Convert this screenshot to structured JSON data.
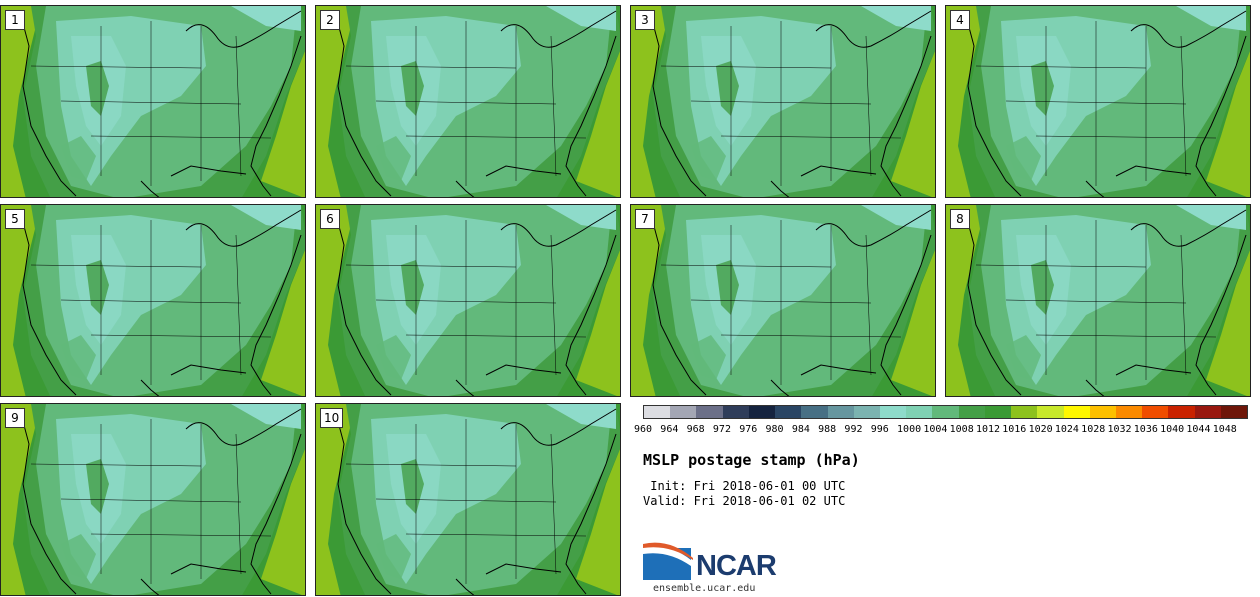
{
  "panels": [
    {
      "label": "1"
    },
    {
      "label": "2"
    },
    {
      "label": "3"
    },
    {
      "label": "4"
    },
    {
      "label": "5"
    },
    {
      "label": "6"
    },
    {
      "label": "7"
    },
    {
      "label": "8"
    },
    {
      "label": "9"
    },
    {
      "label": "10"
    }
  ],
  "colorbar": {
    "colors": [
      "#dcdde2",
      "#a3a6b4",
      "#6b6f88",
      "#2f3d5a",
      "#15233f",
      "#2a4564",
      "#476f84",
      "#66969f",
      "#7bb3b0",
      "#8edbca",
      "#7fd1b3",
      "#62b97b",
      "#449f47",
      "#3b9a35",
      "#8dc21d",
      "#c8e82b",
      "#fff700",
      "#fdc000",
      "#fb8a00",
      "#f04d00",
      "#c92200",
      "#99180f",
      "#6e1609"
    ],
    "ticks": [
      "960",
      "964",
      "968",
      "972",
      "976",
      "980",
      "984",
      "988",
      "992",
      "996",
      "1000",
      "1004",
      "1008",
      "1012",
      "1016",
      "1020",
      "1024",
      "1028",
      "1032",
      "1036",
      "1040",
      "1044",
      "1048"
    ]
  },
  "title": "MSLP postage stamp (hPa)",
  "init": " Init: Fri 2018-06-01 00 UTC",
  "valid": "Valid: Fri 2018-06-01 02 UTC",
  "logo": {
    "name": "NCAR",
    "site": "ensemble.ucar.edu"
  }
}
